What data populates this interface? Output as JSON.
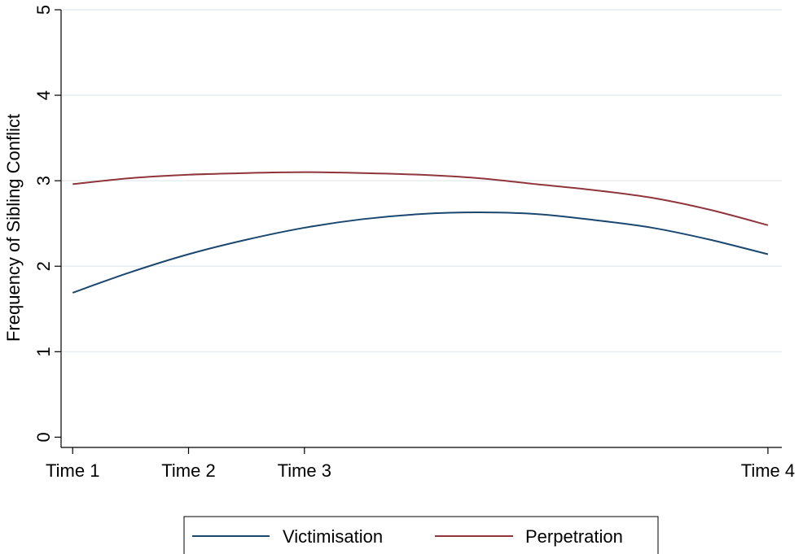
{
  "chart_data": {
    "type": "line",
    "title": "",
    "xlabel": "",
    "ylabel": "Frequency of Sibling Conflict",
    "x_tick_labels": [
      "Time 1",
      "Time 2",
      "Time 3",
      "Time 4"
    ],
    "x_tick_positions": [
      1,
      2,
      3,
      7
    ],
    "xlim": [
      0.9,
      7.12
    ],
    "y_ticks": [
      "0",
      "1",
      "2",
      "3",
      "4",
      "5"
    ],
    "ylim": [
      -0.12,
      5.0
    ],
    "grid": true,
    "legend_position": "bottom",
    "series": [
      {
        "name": "Victimisation",
        "color": "#1a476f",
        "x": [
          1,
          1.5,
          2,
          2.5,
          3,
          3.5,
          4,
          4.5,
          5,
          5.5,
          6,
          6.5,
          7
        ],
        "y": [
          1.69,
          1.93,
          2.14,
          2.31,
          2.45,
          2.55,
          2.61,
          2.63,
          2.61,
          2.54,
          2.45,
          2.31,
          2.14
        ]
      },
      {
        "name": "Perpetration",
        "color": "#90353b",
        "x": [
          1,
          1.5,
          2,
          2.5,
          3,
          3.5,
          4,
          4.5,
          5,
          5.5,
          6,
          6.5,
          7
        ],
        "y": [
          2.96,
          3.03,
          3.07,
          3.09,
          3.1,
          3.09,
          3.07,
          3.03,
          2.96,
          2.89,
          2.8,
          2.66,
          2.48
        ]
      }
    ]
  }
}
